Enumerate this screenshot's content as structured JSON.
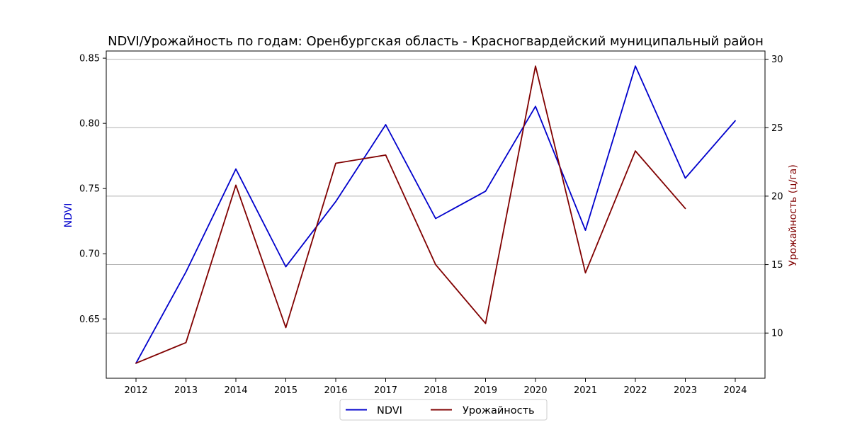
{
  "chart_data": {
    "type": "line",
    "title": "NDVI/Урожайность по годам: Оренбургская область - Красногвардейский муниципальный район",
    "x": [
      "2012",
      "2013",
      "2014",
      "2015",
      "2016",
      "2017",
      "2018",
      "2019",
      "2020",
      "2021",
      "2022",
      "2023",
      "2024"
    ],
    "y_left": {
      "label": "NDVI",
      "color": "#0000cc",
      "ticks": [
        "0.65",
        "0.70",
        "0.75",
        "0.80",
        "0.85"
      ],
      "range": [
        0.6045,
        0.8555
      ]
    },
    "y_right": {
      "label": "Урожайность (ц/га)",
      "color": "#800000",
      "ticks": [
        "10",
        "15",
        "20",
        "25",
        "30"
      ],
      "range": [
        6.7,
        30.6
      ]
    },
    "series": [
      {
        "name": "NDVI",
        "axis": "left",
        "color": "#0000cc",
        "values": [
          0.616,
          0.686,
          0.765,
          0.69,
          0.74,
          0.799,
          0.727,
          0.748,
          0.813,
          0.718,
          0.844,
          0.758,
          0.802
        ]
      },
      {
        "name": "Урожайность",
        "axis": "right",
        "color": "#800000",
        "values": [
          7.8,
          9.3,
          20.8,
          10.4,
          22.4,
          23.0,
          15.0,
          10.7,
          29.5,
          14.4,
          23.3,
          19.1,
          null
        ]
      }
    ],
    "grid": "horizontal (right axis)",
    "legend": "bottom-center"
  }
}
